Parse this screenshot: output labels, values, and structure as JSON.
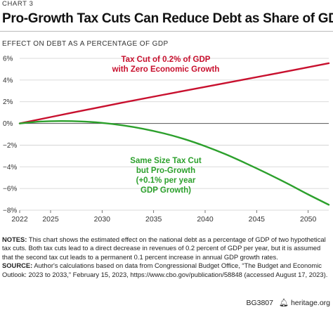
{
  "chart_label": "CHART 3",
  "title": "Pro-Growth Tax Cuts Can Reduce Debt as Share of GDP",
  "subtitle": "EFFECT ON DEBT AS A PERCENTAGE OF GDP",
  "chart_data": {
    "type": "line",
    "title": "Pro-Growth Tax Cuts Can Reduce Debt as Share of GDP",
    "ylabel": "EFFECT ON DEBT AS A PERCENTAGE OF GDP",
    "xlim": [
      2022,
      2052
    ],
    "ylim": [
      -8,
      6
    ],
    "x_ticks": [
      2022,
      2025,
      2030,
      2035,
      2040,
      2045,
      2050
    ],
    "y_ticks": [
      6,
      4,
      2,
      0,
      -2,
      -4,
      -6,
      -8
    ],
    "y_tick_labels": [
      "6%",
      "4%",
      "2%",
      "0%",
      "−2%",
      "−4%",
      "−6%",
      "−8%"
    ],
    "grid": "horizontal",
    "series": [
      {
        "name": "Tax Cut of 0.2% of GDP with Zero Economic Growth",
        "color": "#c8102e",
        "x": [
          2022,
          2027,
          2032,
          2037,
          2042,
          2047,
          2052
        ],
        "values": [
          0.0,
          0.97,
          1.92,
          2.83,
          3.73,
          4.63,
          5.55
        ]
      },
      {
        "name": "Same Size Tax Cut but Pro-Growth (+0.1% per year GDP Growth)",
        "color": "#2ca02c",
        "x": [
          2022,
          2024,
          2026,
          2028,
          2030,
          2032,
          2034,
          2036,
          2038,
          2040,
          2042,
          2044,
          2046,
          2048,
          2050,
          2052
        ],
        "values": [
          0.0,
          0.17,
          0.22,
          0.18,
          0.05,
          -0.18,
          -0.5,
          -0.92,
          -1.45,
          -2.1,
          -2.85,
          -3.7,
          -4.6,
          -5.55,
          -6.55,
          -7.5
        ]
      }
    ],
    "annotations": [
      {
        "lines": [
          "Tax Cut of 0.2% of GDP",
          "with Zero Economic Growth"
        ],
        "color": "#c8102e"
      },
      {
        "lines": [
          "Same Size Tax Cut",
          "but Pro-Growth",
          "(+0.1% per year",
          "GDP Growth)"
        ],
        "color": "#2ca02c"
      }
    ]
  },
  "notes": {
    "notes_label": "NOTES:",
    "notes_text": " This chart shows the estimated effect on the national debt as a percentage of GDP of two hypothetical tax cuts. Both tax cuts lead to a direct decrease in revenues of 0.2 percent of GDP per year, but it is assumed that the second tax cut leads to a permanent 0.1 percent increase in annual GDP growth rates.",
    "source_label": "SOURCE:",
    "source_text": " Author's calculations based on data from Congressional Budget Office, “The Budget and Economic Outlook: 2023 to 2033,” February 15, 2023, https://www.cbo.gov/publication/58848 (accessed August 17, 2023)."
  },
  "footer": {
    "code": "BG3807",
    "icon": "heritage-bell-icon",
    "site": "heritage.org"
  }
}
